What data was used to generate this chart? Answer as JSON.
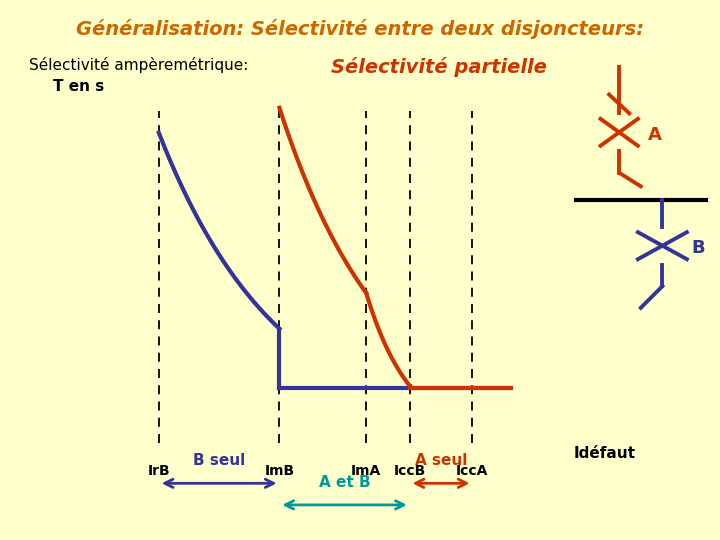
{
  "background_color": "#FFFFCC",
  "title": "Généralisation: Sélectivité entre deux disjoncteurs:",
  "title_color": "#CC6600",
  "subtitle_left": "Sélectivité ampèremétrique:",
  "subtitle_right": "Sélectivité partielle",
  "subtitle_right_color": "#CC3300",
  "ylabel": "T en s",
  "xlabel_arrow": "Idéfaut",
  "curve_A_color": "#CC3300",
  "curve_B_color": "#333399",
  "x_labels": [
    "IrB",
    "ImB",
    "ImA",
    "IccB",
    "IccA"
  ],
  "x_positions": [
    0.18,
    0.43,
    0.61,
    0.7,
    0.83
  ],
  "annot_B_seul": "B seul",
  "annot_A_seul": "A seul",
  "annot_AetB": "A et B",
  "arrow_B_color": "#333399",
  "arrow_A_color": "#CC3300",
  "arrow_AetB_color": "#009999"
}
